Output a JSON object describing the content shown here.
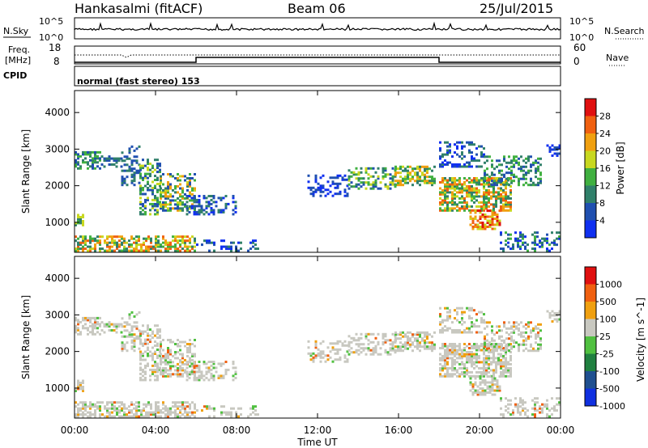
{
  "header": {
    "station": "Hankasalmi (fitACF)",
    "beam": "Beam 06",
    "date": "25/Jul/2015"
  },
  "noise_panel": {
    "left_label": "N.Sky",
    "right_label": "N.Search",
    "left_ticks": [
      "10^5",
      "10^0"
    ],
    "right_ticks": [
      "10^5",
      "10^0"
    ]
  },
  "freq_panel": {
    "left_label_1": "Freq.",
    "left_label_2": "[MHz]",
    "left_ticks": [
      "18",
      "8"
    ],
    "right_label": "Nave",
    "right_ticks": [
      "60",
      "0"
    ]
  },
  "cpid_panel": {
    "label": "CPID",
    "program": "normal (fast stereo) 153"
  },
  "chart_data": [
    {
      "type": "heatmap",
      "name": "power",
      "title": "",
      "xlabel": "Time UT",
      "ylabel": "Slant Range [km]",
      "xlim": [
        0,
        24
      ],
      "ylim": [
        180,
        4600
      ],
      "x_ticks": [
        "00:00",
        "04:00",
        "08:00",
        "12:00",
        "16:00",
        "20:00",
        "00:00"
      ],
      "y_ticks": [
        "1000",
        "2000",
        "3000",
        "4000"
      ],
      "y_tick_values": [
        1000,
        2000,
        3000,
        4000
      ],
      "colorbar": {
        "label": "Power [dB]",
        "ticks": [
          "4",
          "8",
          "12",
          "16",
          "20",
          "24",
          "28"
        ],
        "colors": [
          "#1030f0",
          "#2050b0",
          "#30806a",
          "#40b040",
          "#c8d820",
          "#f0a010",
          "#f06010",
          "#e01010"
        ]
      }
    },
    {
      "type": "heatmap",
      "name": "velocity",
      "title": "",
      "xlabel": "Time UT",
      "ylabel": "Slant Range [km]",
      "xlim": [
        0,
        24
      ],
      "ylim": [
        180,
        4600
      ],
      "x_ticks": [
        "00:00",
        "04:00",
        "08:00",
        "12:00",
        "16:00",
        "20:00",
        "00:00"
      ],
      "y_ticks": [
        "1000",
        "2000",
        "3000",
        "4000"
      ],
      "y_tick_values": [
        1000,
        2000,
        3000,
        4000
      ],
      "colorbar": {
        "label": "Velocity [m s^-1]",
        "ticks": [
          "1000",
          "500",
          "100",
          "25",
          "-25",
          "-100",
          "-500",
          "-1000"
        ],
        "colors": [
          "#1030e0",
          "#205090",
          "#208040",
          "#50c040",
          "#c8c8c0",
          "#f0a010",
          "#f06010",
          "#e01010"
        ]
      }
    }
  ]
}
